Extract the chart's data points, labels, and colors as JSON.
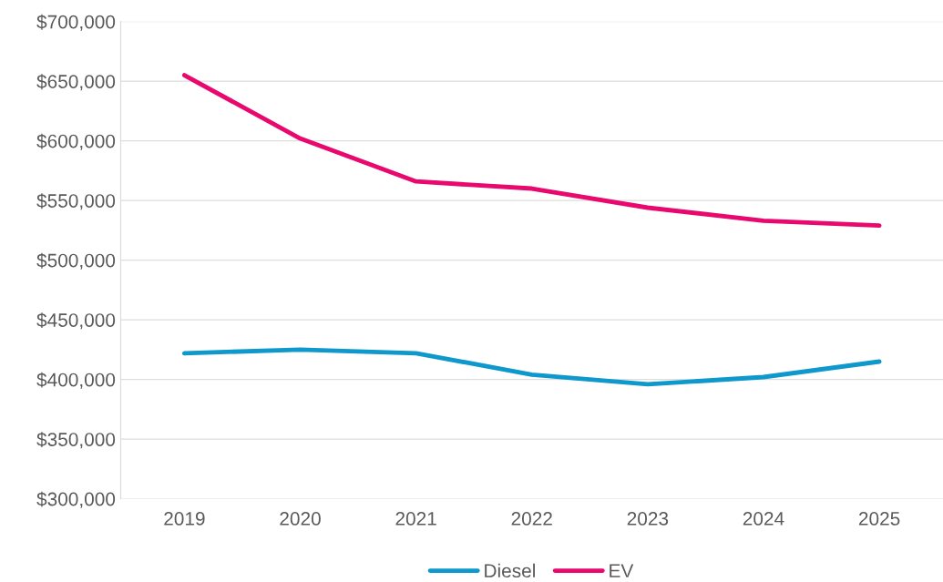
{
  "chart_data": {
    "type": "line",
    "categories": [
      "2019",
      "2020",
      "2021",
      "2022",
      "2023",
      "2024",
      "2025"
    ],
    "series": [
      {
        "name": "Diesel",
        "color": "#0e98cc",
        "values": [
          422000,
          425000,
          422000,
          404000,
          396000,
          402000,
          415000
        ]
      },
      {
        "name": "EV",
        "color": "#e8086e",
        "values": [
          655000,
          602000,
          566000,
          560000,
          544000,
          533000,
          529000
        ]
      }
    ],
    "ylim": [
      300000,
      700000
    ],
    "yticks": [
      {
        "value": 300000,
        "label": "$300,000"
      },
      {
        "value": 350000,
        "label": "$350,000"
      },
      {
        "value": 400000,
        "label": "$400,000"
      },
      {
        "value": 450000,
        "label": "$450,000"
      },
      {
        "value": 500000,
        "label": "$500,000"
      },
      {
        "value": 550000,
        "label": "$550,000"
      },
      {
        "value": 600000,
        "label": "$600,000"
      },
      {
        "value": 650000,
        "label": "$650,000"
      },
      {
        "value": 700000,
        "label": "$700,000"
      }
    ],
    "grid": "y",
    "legend": "bottom",
    "marker": "none",
    "line_style": "solid"
  }
}
